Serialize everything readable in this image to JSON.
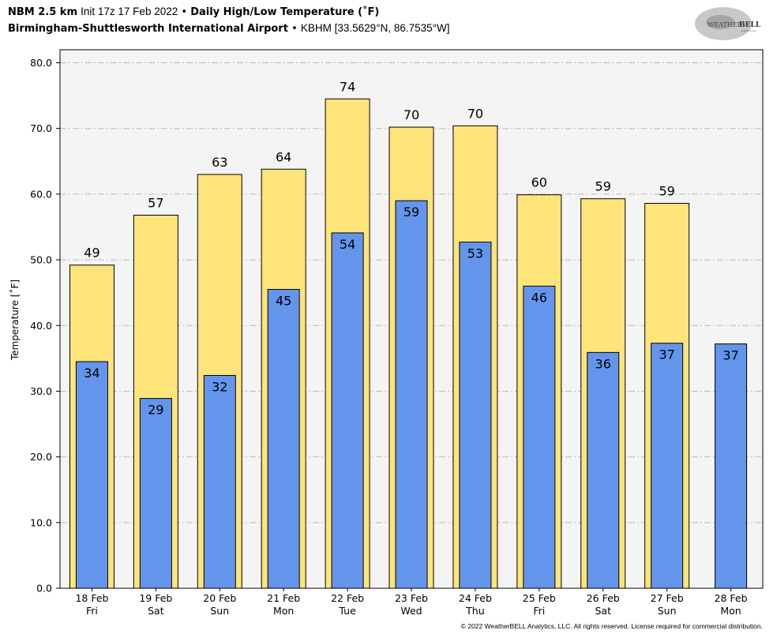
{
  "header": {
    "model": "NBM 2.5 km",
    "init": "Init 17z 17 Feb 2022",
    "separator": "•",
    "product": "Daily High/Low Temperature (˚F)",
    "station_name": "Birmingham-Shuttlesworth International Airport",
    "station_info": "KBHM [33.5629°N, 86.7535°W]"
  },
  "logo": {
    "text_main": "WEATHER",
    "text_brand": "BELL",
    "text_sub": "Analytics LLC"
  },
  "footer": {
    "copyright": "© 2022 WeatherBELL Analytics, LLC. All rights reserved. License required for commercial distribution."
  },
  "colors": {
    "high": "#FFE47A",
    "low": "#6495ED",
    "plot_bg": "#F4F4F4",
    "grid": "#BBBBBB"
  },
  "chart_data": {
    "type": "bar",
    "title": "Daily High/Low Temperature (˚F)",
    "xlabel": "",
    "ylabel": "Temperature [˚F]",
    "ylim": [
      0,
      82
    ],
    "yticks": [
      0,
      10,
      20,
      30,
      40,
      50,
      60,
      70,
      80
    ],
    "ytick_labels": [
      "0.0",
      "10.0",
      "20.0",
      "30.0",
      "40.0",
      "50.0",
      "60.0",
      "70.0",
      "80.0"
    ],
    "grid": true,
    "categories": [
      "18 Feb",
      "19 Feb",
      "20 Feb",
      "21 Feb",
      "22 Feb",
      "23 Feb",
      "24 Feb",
      "25 Feb",
      "26 Feb",
      "27 Feb",
      "28 Feb"
    ],
    "weekdays": [
      "Fri",
      "Sat",
      "Sun",
      "Mon",
      "Tue",
      "Wed",
      "Thu",
      "Fri",
      "Sat",
      "Sun",
      "Mon"
    ],
    "series": [
      {
        "name": "High",
        "values": [
          49.2,
          56.8,
          63.0,
          63.8,
          74.5,
          70.2,
          70.4,
          59.9,
          59.3,
          58.6,
          null
        ],
        "labels": [
          "49",
          "57",
          "63",
          "64",
          "74",
          "70",
          "70",
          "60",
          "59",
          "59",
          ""
        ]
      },
      {
        "name": "Low",
        "values": [
          34.5,
          28.9,
          32.4,
          45.5,
          54.1,
          59.0,
          52.7,
          46.0,
          35.9,
          37.3,
          37.2
        ],
        "labels": [
          "34",
          "29",
          "32",
          "45",
          "54",
          "59",
          "53",
          "46",
          "36",
          "37",
          "37"
        ]
      }
    ]
  }
}
